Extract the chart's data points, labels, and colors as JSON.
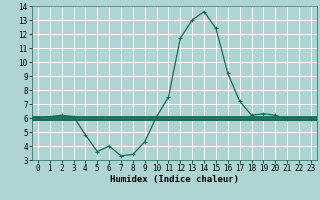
{
  "xlabel": "Humidex (Indice chaleur)",
  "bg_color": "#aed4d4",
  "grid_color": "#ffffff",
  "line_color": "#1a6b5a",
  "xlim": [
    -0.5,
    23.5
  ],
  "ylim": [
    3,
    14
  ],
  "xticks": [
    0,
    1,
    2,
    3,
    4,
    5,
    6,
    7,
    8,
    9,
    10,
    11,
    12,
    13,
    14,
    15,
    16,
    17,
    18,
    19,
    20,
    21,
    22,
    23
  ],
  "yticks": [
    3,
    4,
    5,
    6,
    7,
    8,
    9,
    10,
    11,
    12,
    13,
    14
  ],
  "x": [
    0,
    1,
    2,
    3,
    4,
    5,
    6,
    7,
    8,
    9,
    10,
    11,
    12,
    13,
    14,
    15,
    16,
    17,
    18,
    19,
    20,
    21,
    22,
    23
  ],
  "y": [
    6.0,
    6.1,
    6.2,
    6.1,
    4.8,
    3.6,
    4.0,
    3.3,
    3.4,
    4.3,
    6.1,
    7.5,
    11.7,
    13.0,
    13.6,
    12.4,
    9.2,
    7.2,
    6.2,
    6.3,
    6.2,
    5.9,
    5.9,
    5.9
  ],
  "flat1": 6.05,
  "flat2": 5.95,
  "flat3": 5.85,
  "marker": "+",
  "markersize": 3,
  "linewidth": 0.9,
  "tick_fontsize": 5.5,
  "label_fontsize": 6.5
}
